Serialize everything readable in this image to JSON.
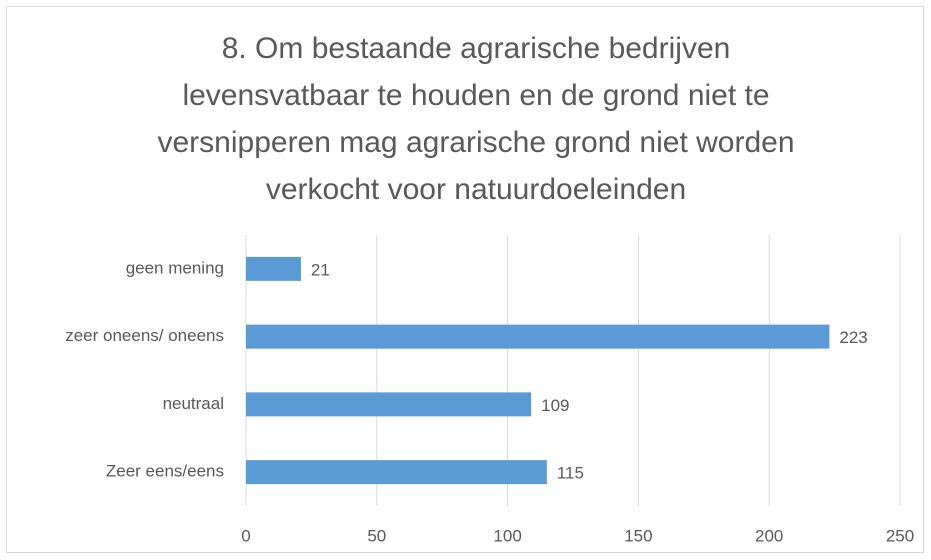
{
  "chart_data": {
    "type": "hbar",
    "title": [
      "8. Om bestaande agrarische bedrijven",
      "levensvatbaar te houden en de grond niet te",
      "versnipperen mag agrarische grond niet worden",
      "verkocht voor natuurdoeleinden"
    ],
    "categories": [
      "geen mening",
      "zeer oneens/ oneens",
      "neutraal",
      "Zeer eens/eens"
    ],
    "values": [
      21,
      223,
      109,
      115
    ],
    "color": "#5b9bd5",
    "xlim": [
      0,
      250
    ],
    "xticks": [
      0,
      50,
      100,
      150,
      200,
      250
    ],
    "grid": true
  }
}
